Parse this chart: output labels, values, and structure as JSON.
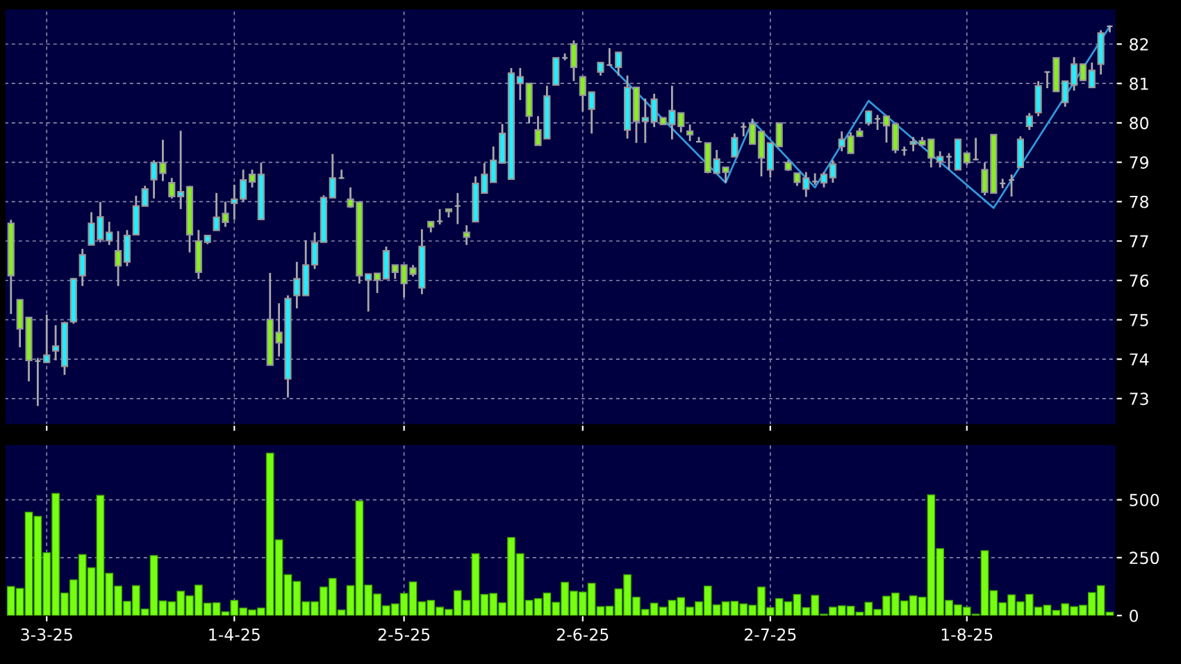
{
  "chart_data": [
    {
      "type": "candlestick",
      "categories": [
        null,
        null,
        null,
        null,
        null,
        null,
        null,
        null,
        null,
        null,
        null,
        null,
        null,
        null,
        null,
        null,
        null,
        null,
        null,
        null,
        null,
        null,
        null,
        null,
        null,
        null,
        null,
        null,
        null,
        null,
        null,
        null,
        null,
        null,
        null,
        null,
        null,
        null,
        null,
        null,
        null,
        null,
        null,
        null,
        null,
        null,
        null,
        null,
        null,
        null,
        null,
        null,
        null,
        null,
        null,
        null,
        null,
        null,
        null,
        null,
        null,
        null,
        null,
        null,
        null,
        null,
        null,
        null,
        null,
        null,
        null,
        null,
        null,
        null,
        null,
        null,
        null,
        null,
        null,
        null,
        null,
        null,
        null,
        null,
        null,
        null,
        null,
        null,
        null,
        null,
        null,
        null,
        null,
        null,
        null,
        null,
        null,
        null,
        null,
        null,
        null,
        null,
        null,
        null,
        null,
        null,
        null,
        null,
        null,
        null,
        null,
        null,
        null,
        null,
        null,
        null,
        null,
        null,
        null,
        null,
        null,
        null,
        null,
        null
      ],
      "ohlc": [
        [
          77.45,
          77.54,
          75.15,
          76.12
        ],
        [
          75.51,
          75.51,
          74.3,
          74.77
        ],
        [
          75.06,
          75.06,
          73.44,
          73.97
        ],
        [
          73.95,
          74.03,
          72.81,
          73.95
        ],
        [
          73.92,
          75.13,
          73.9,
          74.1
        ],
        [
          74.21,
          74.86,
          73.97,
          74.33
        ],
        [
          73.82,
          74.95,
          73.6,
          74.92
        ],
        [
          74.95,
          76.06,
          74.9,
          76.04
        ],
        [
          76.12,
          76.8,
          75.86,
          76.65
        ],
        [
          76.9,
          77.73,
          76.9,
          77.45
        ],
        [
          77.04,
          77.99,
          76.97,
          77.61
        ],
        [
          77.01,
          77.49,
          76.9,
          77.22
        ],
        [
          76.75,
          77.25,
          75.86,
          76.37
        ],
        [
          76.47,
          77.28,
          76.36,
          77.14
        ],
        [
          77.16,
          78.15,
          77.16,
          77.89
        ],
        [
          77.89,
          78.4,
          77.89,
          78.32
        ],
        [
          78.56,
          79.05,
          78.08,
          78.99
        ],
        [
          78.98,
          79.57,
          78.52,
          78.72
        ],
        [
          78.48,
          78.6,
          78.08,
          78.13
        ],
        [
          78.13,
          79.8,
          77.81,
          78.25
        ],
        [
          78.38,
          78.4,
          76.71,
          77.16
        ],
        [
          77.0,
          77.28,
          76.04,
          76.21
        ],
        [
          76.97,
          77.14,
          76.92,
          77.14
        ],
        [
          77.27,
          78.22,
          77.27,
          77.6
        ],
        [
          77.7,
          78.0,
          77.36,
          77.48
        ],
        [
          77.96,
          78.43,
          77.54,
          78.06
        ],
        [
          78.07,
          78.81,
          78.0,
          78.55
        ],
        [
          78.69,
          78.81,
          78.36,
          78.5
        ],
        [
          77.55,
          78.99,
          77.55,
          78.69
        ],
        [
          75.01,
          76.19,
          73.85,
          73.85
        ],
        [
          74.68,
          75.42,
          74.07,
          74.42
        ],
        [
          73.5,
          75.62,
          73.03,
          75.54
        ],
        [
          75.62,
          76.47,
          75.29,
          76.04
        ],
        [
          75.62,
          77.02,
          75.62,
          76.39
        ],
        [
          76.4,
          77.22,
          76.29,
          76.96
        ],
        [
          76.97,
          78.16,
          76.97,
          78.1
        ],
        [
          78.1,
          79.21,
          78.1,
          78.6
        ],
        [
          78.6,
          78.81,
          78.58,
          78.6
        ],
        [
          78.06,
          78.36,
          77.84,
          77.87
        ],
        [
          77.99,
          77.99,
          75.92,
          76.12
        ],
        [
          76.01,
          76.16,
          75.21,
          76.16
        ],
        [
          76.18,
          76.18,
          75.68,
          76.01
        ],
        [
          76.04,
          76.86,
          76.04,
          76.75
        ],
        [
          76.39,
          76.39,
          76.04,
          76.21
        ],
        [
          76.39,
          76.39,
          75.57,
          75.92
        ],
        [
          76.31,
          76.39,
          76.1,
          76.16
        ],
        [
          75.81,
          77.3,
          75.65,
          76.86
        ],
        [
          77.49,
          77.49,
          77.22,
          77.36
        ],
        [
          77.5,
          77.81,
          77.42,
          77.5
        ],
        [
          77.81,
          77.81,
          77.6,
          77.75
        ],
        [
          77.89,
          78.22,
          77.43,
          77.89
        ],
        [
          77.22,
          77.4,
          76.9,
          77.1
        ],
        [
          77.49,
          78.64,
          77.49,
          78.46
        ],
        [
          78.22,
          78.98,
          78.22,
          78.69
        ],
        [
          78.49,
          79.4,
          78.49,
          79.05
        ],
        [
          78.98,
          79.97,
          78.98,
          79.73
        ],
        [
          78.57,
          81.39,
          78.57,
          81.26
        ],
        [
          81.0,
          81.39,
          80.58,
          81.17
        ],
        [
          81.0,
          81.0,
          79.99,
          80.17
        ],
        [
          79.82,
          80.17,
          79.43,
          79.43
        ],
        [
          79.6,
          80.94,
          79.6,
          80.68
        ],
        [
          80.96,
          81.65,
          80.96,
          81.65
        ],
        [
          81.65,
          81.76,
          81.59,
          81.65
        ],
        [
          82.0,
          82.09,
          81.06,
          81.41
        ],
        [
          81.17,
          81.17,
          80.29,
          80.7
        ],
        [
          80.35,
          80.78,
          79.73,
          80.78
        ],
        [
          81.29,
          81.53,
          81.2,
          81.53
        ],
        [
          81.47,
          81.9,
          81.47,
          81.47
        ],
        [
          81.41,
          81.79,
          81.2,
          81.79
        ],
        [
          79.82,
          81.2,
          79.6,
          80.9
        ],
        [
          80.9,
          80.9,
          79.49,
          80.04
        ],
        [
          80.04,
          80.62,
          79.49,
          80.13
        ],
        [
          80.03,
          80.74,
          79.89,
          80.6
        ],
        [
          80.13,
          80.13,
          79.96,
          79.96
        ],
        [
          79.96,
          80.94,
          79.58,
          80.31
        ],
        [
          80.25,
          80.25,
          79.76,
          79.91
        ],
        [
          79.79,
          79.96,
          79.54,
          79.7
        ],
        [
          79.52,
          79.64,
          79.52,
          79.52
        ],
        [
          79.49,
          79.49,
          78.72,
          78.75
        ],
        [
          78.72,
          79.31,
          78.72,
          79.08
        ],
        [
          78.87,
          78.87,
          78.48,
          78.75
        ],
        [
          79.14,
          79.73,
          79.14,
          79.62
        ],
        [
          79.9,
          79.99,
          79.66,
          79.9
        ],
        [
          79.97,
          80.11,
          79.46,
          79.46
        ],
        [
          79.78,
          79.78,
          78.64,
          79.11
        ],
        [
          78.81,
          79.49,
          78.61,
          79.49
        ],
        [
          79.99,
          80.0,
          79.4,
          79.4
        ],
        [
          78.99,
          79.05,
          78.78,
          78.81
        ],
        [
          78.72,
          78.72,
          78.4,
          78.49
        ],
        [
          78.32,
          78.75,
          78.12,
          78.6
        ],
        [
          78.51,
          78.72,
          78.43,
          78.51
        ],
        [
          78.48,
          78.75,
          78.36,
          78.69
        ],
        [
          78.61,
          79.05,
          78.48,
          78.95
        ],
        [
          79.4,
          79.78,
          79.28,
          79.58
        ],
        [
          79.66,
          79.76,
          79.23,
          79.23
        ],
        [
          79.79,
          79.87,
          79.64,
          79.66
        ],
        [
          79.99,
          80.32,
          79.93,
          80.29
        ],
        [
          80.1,
          80.2,
          79.82,
          80.1
        ],
        [
          80.17,
          80.17,
          79.5,
          79.93
        ],
        [
          79.97,
          79.97,
          79.23,
          79.31
        ],
        [
          79.31,
          79.4,
          79.17,
          79.31
        ],
        [
          79.46,
          79.64,
          79.28,
          79.52
        ],
        [
          79.54,
          79.64,
          79.44,
          79.44
        ],
        [
          79.58,
          79.58,
          78.87,
          79.11
        ],
        [
          79.02,
          79.28,
          78.87,
          79.14
        ],
        [
          79.14,
          79.23,
          78.81,
          79.14
        ],
        [
          78.81,
          79.58,
          78.81,
          79.58
        ],
        [
          79.23,
          79.23,
          78.93,
          78.99
        ],
        [
          79.07,
          79.62,
          79.05,
          79.07
        ],
        [
          78.81,
          78.99,
          78.16,
          78.24
        ],
        [
          79.7,
          79.7,
          78.22,
          78.22
        ],
        [
          78.46,
          78.58,
          78.34,
          78.46
        ],
        [
          78.55,
          78.69,
          78.13,
          78.55
        ],
        [
          78.87,
          79.66,
          78.87,
          79.58
        ],
        [
          79.91,
          80.25,
          79.82,
          80.17
        ],
        [
          80.26,
          81.06,
          80.17,
          80.94
        ],
        [
          81.29,
          81.29,
          80.88,
          81.29
        ],
        [
          81.65,
          81.65,
          80.8,
          80.8
        ],
        [
          80.52,
          81.06,
          80.41,
          81.06
        ],
        [
          80.96,
          81.67,
          80.82,
          81.49
        ],
        [
          81.49,
          81.49,
          81.06,
          81.08
        ],
        [
          80.9,
          81.53,
          80.9,
          81.33
        ],
        [
          81.49,
          82.35,
          81.23,
          82.28
        ],
        [
          82.45,
          82.45,
          82.3,
          82.45
        ]
      ],
      "colors": [
        "#88ee22",
        "#88ee22",
        "#88ee22",
        "#aaaaaa",
        "#22eeff",
        "#22eeff",
        "#22eeff",
        "#22eeff",
        "#22eeff",
        "#22eeff",
        "#22eeff",
        "#22eeff",
        "#88ee22",
        "#22eeff",
        "#22eeff",
        "#22eeff",
        "#22eeff",
        "#88ee22",
        "#88ee22",
        "#22eeff",
        "#88ee22",
        "#88ee22",
        "#22eeff",
        "#22eeff",
        "#88ee22",
        "#22eeff",
        "#22eeff",
        "#88ee22",
        "#22eeff",
        "#88ee22",
        "#88ee22",
        "#22eeff",
        "#22eeff",
        "#22eeff",
        "#22eeff",
        "#22eeff",
        "#22eeff",
        "#aaaaaa",
        "#88ee22",
        "#88ee22",
        "#22eeff",
        "#88ee22",
        "#22eeff",
        "#88ee22",
        "#88ee22",
        "#88ee22",
        "#22eeff",
        "#88ee22",
        "#aaaaaa",
        "#88ee22",
        "#aaaaaa",
        "#88ee22",
        "#22eeff",
        "#22eeff",
        "#22eeff",
        "#22eeff",
        "#22eeff",
        "#22eeff",
        "#88ee22",
        "#88ee22",
        "#22eeff",
        "#22eeff",
        "#aaaaaa",
        "#88ee22",
        "#88ee22",
        "#22eeff",
        "#22eeff",
        "#aaaaaa",
        "#22eeff",
        "#22eeff",
        "#88ee22",
        "#22eeff",
        "#22eeff",
        "#88ee22",
        "#22eeff",
        "#88ee22",
        "#88ee22",
        "#aaaaaa",
        "#88ee22",
        "#22eeff",
        "#88ee22",
        "#22eeff",
        "#aaaaaa",
        "#88ee22",
        "#88ee22",
        "#22eeff",
        "#88ee22",
        "#88ee22",
        "#88ee22",
        "#22eeff",
        "#aaaaaa",
        "#22eeff",
        "#22eeff",
        "#22eeff",
        "#88ee22",
        "#88ee22",
        "#22eeff",
        "#aaaaaa",
        "#88ee22",
        "#88ee22",
        "#aaaaaa",
        "#22eeff",
        "#88ee22",
        "#88ee22",
        "#22eeff",
        "#aaaaaa",
        "#22eeff",
        "#88ee22",
        "#aaaaaa",
        "#88ee22",
        "#88ee22",
        "#aaaaaa",
        "#aaaaaa",
        "#22eeff",
        "#22eeff",
        "#22eeff",
        "#aaaaaa",
        "#88ee22",
        "#22eeff",
        "#22eeff",
        "#88ee22",
        "#22eeff",
        "#22eeff",
        "#aaaaaa"
      ],
      "series": [
        {
          "type": "line",
          "color": "#3399dd",
          "values": [
            null,
            null,
            null,
            null,
            null,
            null,
            null,
            null,
            null,
            null,
            null,
            null,
            null,
            null,
            null,
            null,
            null,
            null,
            null,
            null,
            null,
            null,
            null,
            null,
            null,
            null,
            null,
            null,
            null,
            null,
            null,
            null,
            null,
            null,
            null,
            null,
            null,
            null,
            null,
            null,
            null,
            null,
            null,
            null,
            null,
            null,
            null,
            null,
            null,
            null,
            null,
            null,
            null,
            null,
            null,
            null,
            null,
            null,
            null,
            null,
            null,
            null,
            null,
            null,
            null,
            null,
            null,
            81.47,
            null,
            null,
            null,
            null,
            null,
            null,
            null,
            null,
            null,
            null,
            null,
            null,
            78.48,
            null,
            null,
            80.05,
            null,
            null,
            null,
            null,
            null,
            null,
            78.36,
            null,
            null,
            null,
            null,
            null,
            80.56,
            null,
            null,
            null,
            null,
            null,
            null,
            null,
            null,
            null,
            null,
            null,
            null,
            null,
            77.84,
            null,
            null,
            null,
            null,
            null,
            null,
            null,
            null,
            null,
            null,
            null,
            null,
            82.45
          ]
        }
      ],
      "ylim": [
        72.33,
        82.9
      ],
      "yticks": [
        73,
        74,
        75,
        76,
        77,
        78,
        79,
        80,
        81,
        82
      ],
      "grid": true,
      "tick_labels": "y"
    },
    {
      "type": "bar",
      "categories": [
        null,
        null,
        null,
        null,
        "3-3-25",
        null,
        null,
        null,
        null,
        null,
        null,
        null,
        null,
        null,
        null,
        null,
        null,
        null,
        null,
        null,
        null,
        null,
        null,
        null,
        null,
        "1-4-25",
        null,
        null,
        null,
        null,
        null,
        null,
        null,
        null,
        null,
        null,
        null,
        null,
        null,
        null,
        null,
        null,
        null,
        null,
        "2-5-25",
        null,
        null,
        null,
        null,
        null,
        null,
        null,
        null,
        null,
        null,
        null,
        null,
        null,
        null,
        null,
        null,
        null,
        null,
        null,
        "2-6-25",
        null,
        null,
        null,
        null,
        null,
        null,
        null,
        null,
        null,
        null,
        null,
        null,
        null,
        null,
        null,
        null,
        null,
        null,
        null,
        null,
        "2-7-25",
        null,
        null,
        null,
        null,
        null,
        null,
        null,
        null,
        null,
        null,
        null,
        null,
        null,
        null,
        null,
        null,
        null,
        null,
        null,
        null,
        null,
        "1-8-25",
        null,
        null,
        null,
        null,
        null,
        null,
        null,
        null,
        null,
        null,
        null,
        null,
        null,
        null,
        null,
        null
      ],
      "values": [
        125,
        117,
        446,
        428,
        271,
        527,
        97,
        154,
        263,
        206,
        519,
        182,
        127,
        61,
        129,
        28,
        259,
        63,
        59,
        105,
        85,
        131,
        53,
        55,
        16,
        65,
        32,
        24,
        32,
        701,
        327,
        176,
        147,
        59,
        59,
        123,
        160,
        24,
        129,
        495,
        131,
        93,
        42,
        50,
        95,
        145,
        59,
        65,
        36,
        26,
        107,
        65,
        267,
        91,
        95,
        55,
        337,
        267,
        65,
        73,
        97,
        57,
        143,
        105,
        101,
        139,
        38,
        40,
        115,
        176,
        79,
        26,
        53,
        36,
        65,
        77,
        36,
        59,
        127,
        46,
        59,
        61,
        50,
        44,
        123,
        34,
        73,
        59,
        91,
        34,
        87,
        6,
        36,
        42,
        40,
        14,
        57,
        26,
        83,
        97,
        63,
        85,
        79,
        521,
        289,
        65,
        46,
        36,
        6,
        280,
        107,
        55,
        89,
        59,
        91,
        36,
        44,
        22,
        51,
        38,
        44,
        99,
        129,
        14
      ],
      "color": "#77ff11",
      "ylim": [
        0,
        740
      ],
      "yticks": [
        0,
        250,
        500
      ],
      "grid": true
    }
  ]
}
